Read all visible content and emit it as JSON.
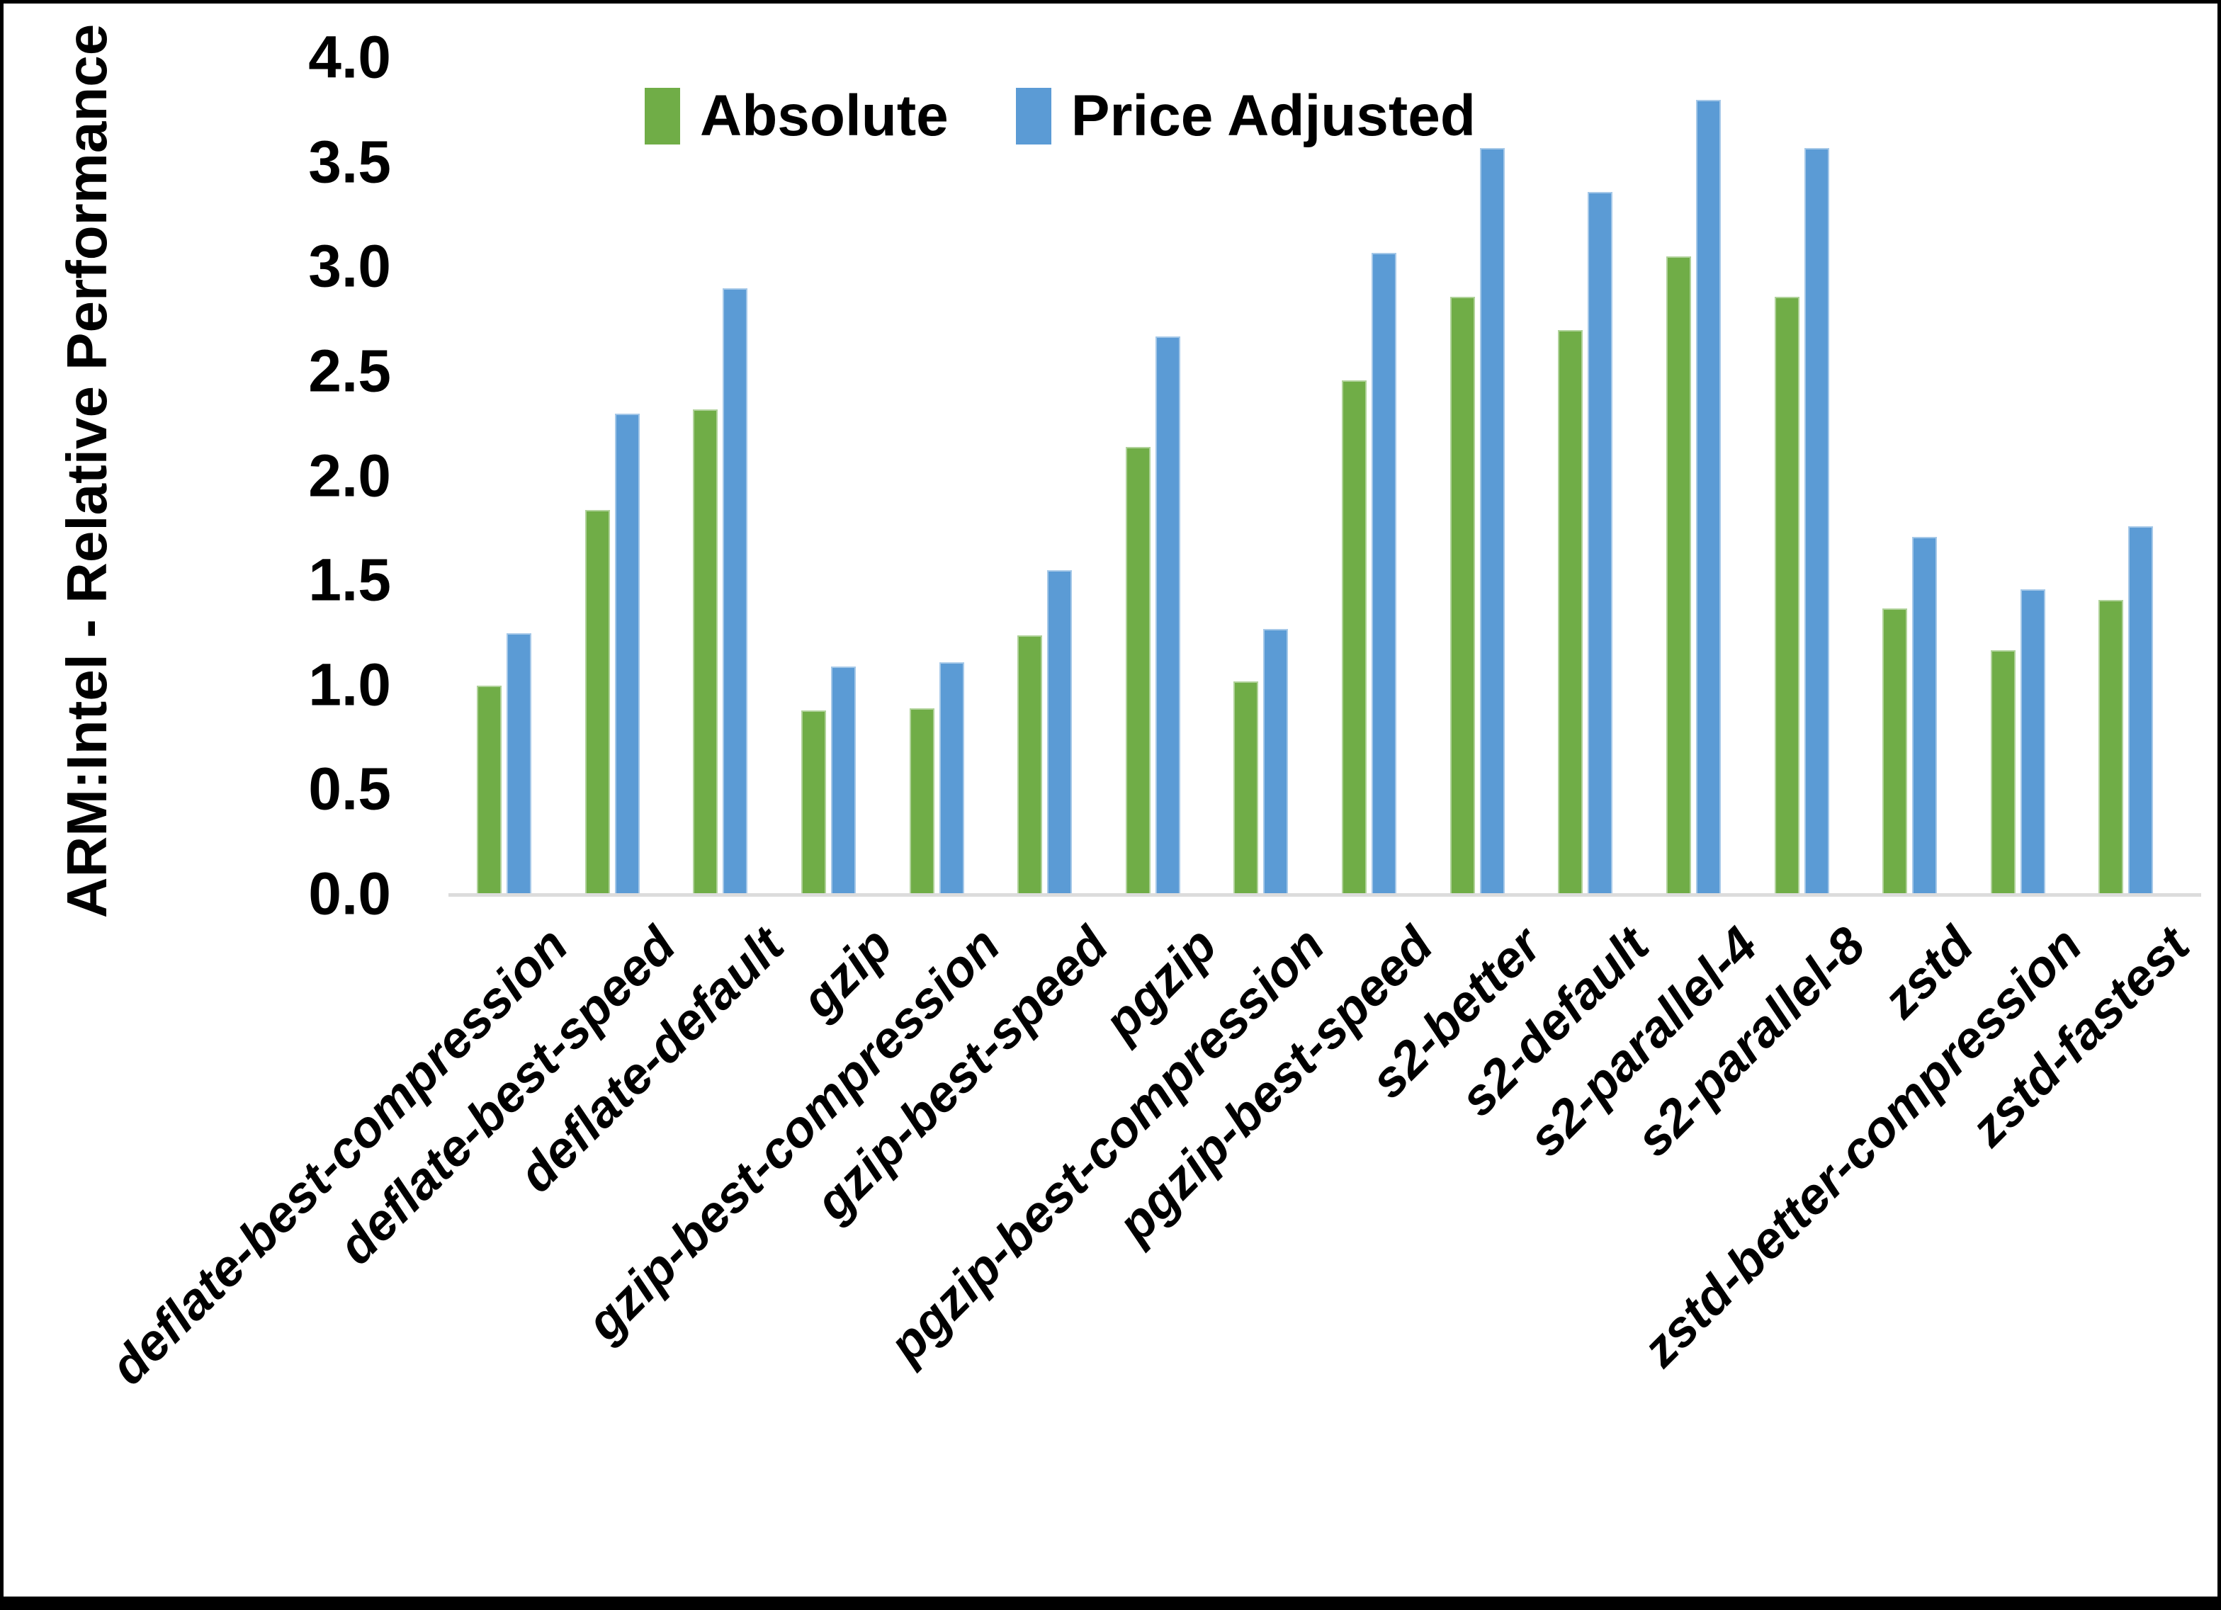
{
  "chart_data": {
    "type": "bar",
    "title": "",
    "xlabel": "",
    "ylabel": "ARM:Intel - Relative Performance",
    "ylim": [
      0.0,
      4.0
    ],
    "yticks": [
      "0.0",
      "0.5",
      "1.0",
      "1.5",
      "2.0",
      "2.5",
      "3.0",
      "3.5",
      "4.0"
    ],
    "grid": false,
    "legend_position": "top-center",
    "axis_line_color": "#DCDCDC",
    "text_color": "#000000",
    "categories": [
      "deflate-best-compression",
      "deflate-best-speed",
      "deflate-default",
      "gzip",
      "gzip-best-compression",
      "gzip-best-speed",
      "pgzip",
      "pgzip-best-compression",
      "pgzip-best-speed",
      "s2-better",
      "s2-default",
      "s2-parallel-4",
      "s2-parallel-8",
      "zstd",
      "zstd-better-compression",
      "zstd-fastest"
    ],
    "series": [
      {
        "name": "Absolute",
        "color": "#70AD47",
        "values": [
          1.0,
          1.84,
          2.32,
          0.88,
          0.89,
          1.24,
          2.14,
          1.02,
          2.46,
          2.86,
          2.7,
          3.05,
          2.86,
          1.37,
          1.17,
          1.41
        ]
      },
      {
        "name": "Price Adjusted",
        "color": "#5B9BD5",
        "values": [
          1.25,
          2.3,
          2.9,
          1.09,
          1.11,
          1.55,
          2.67,
          1.27,
          3.07,
          3.57,
          3.36,
          3.8,
          3.57,
          1.71,
          1.46,
          1.76
        ]
      }
    ]
  }
}
